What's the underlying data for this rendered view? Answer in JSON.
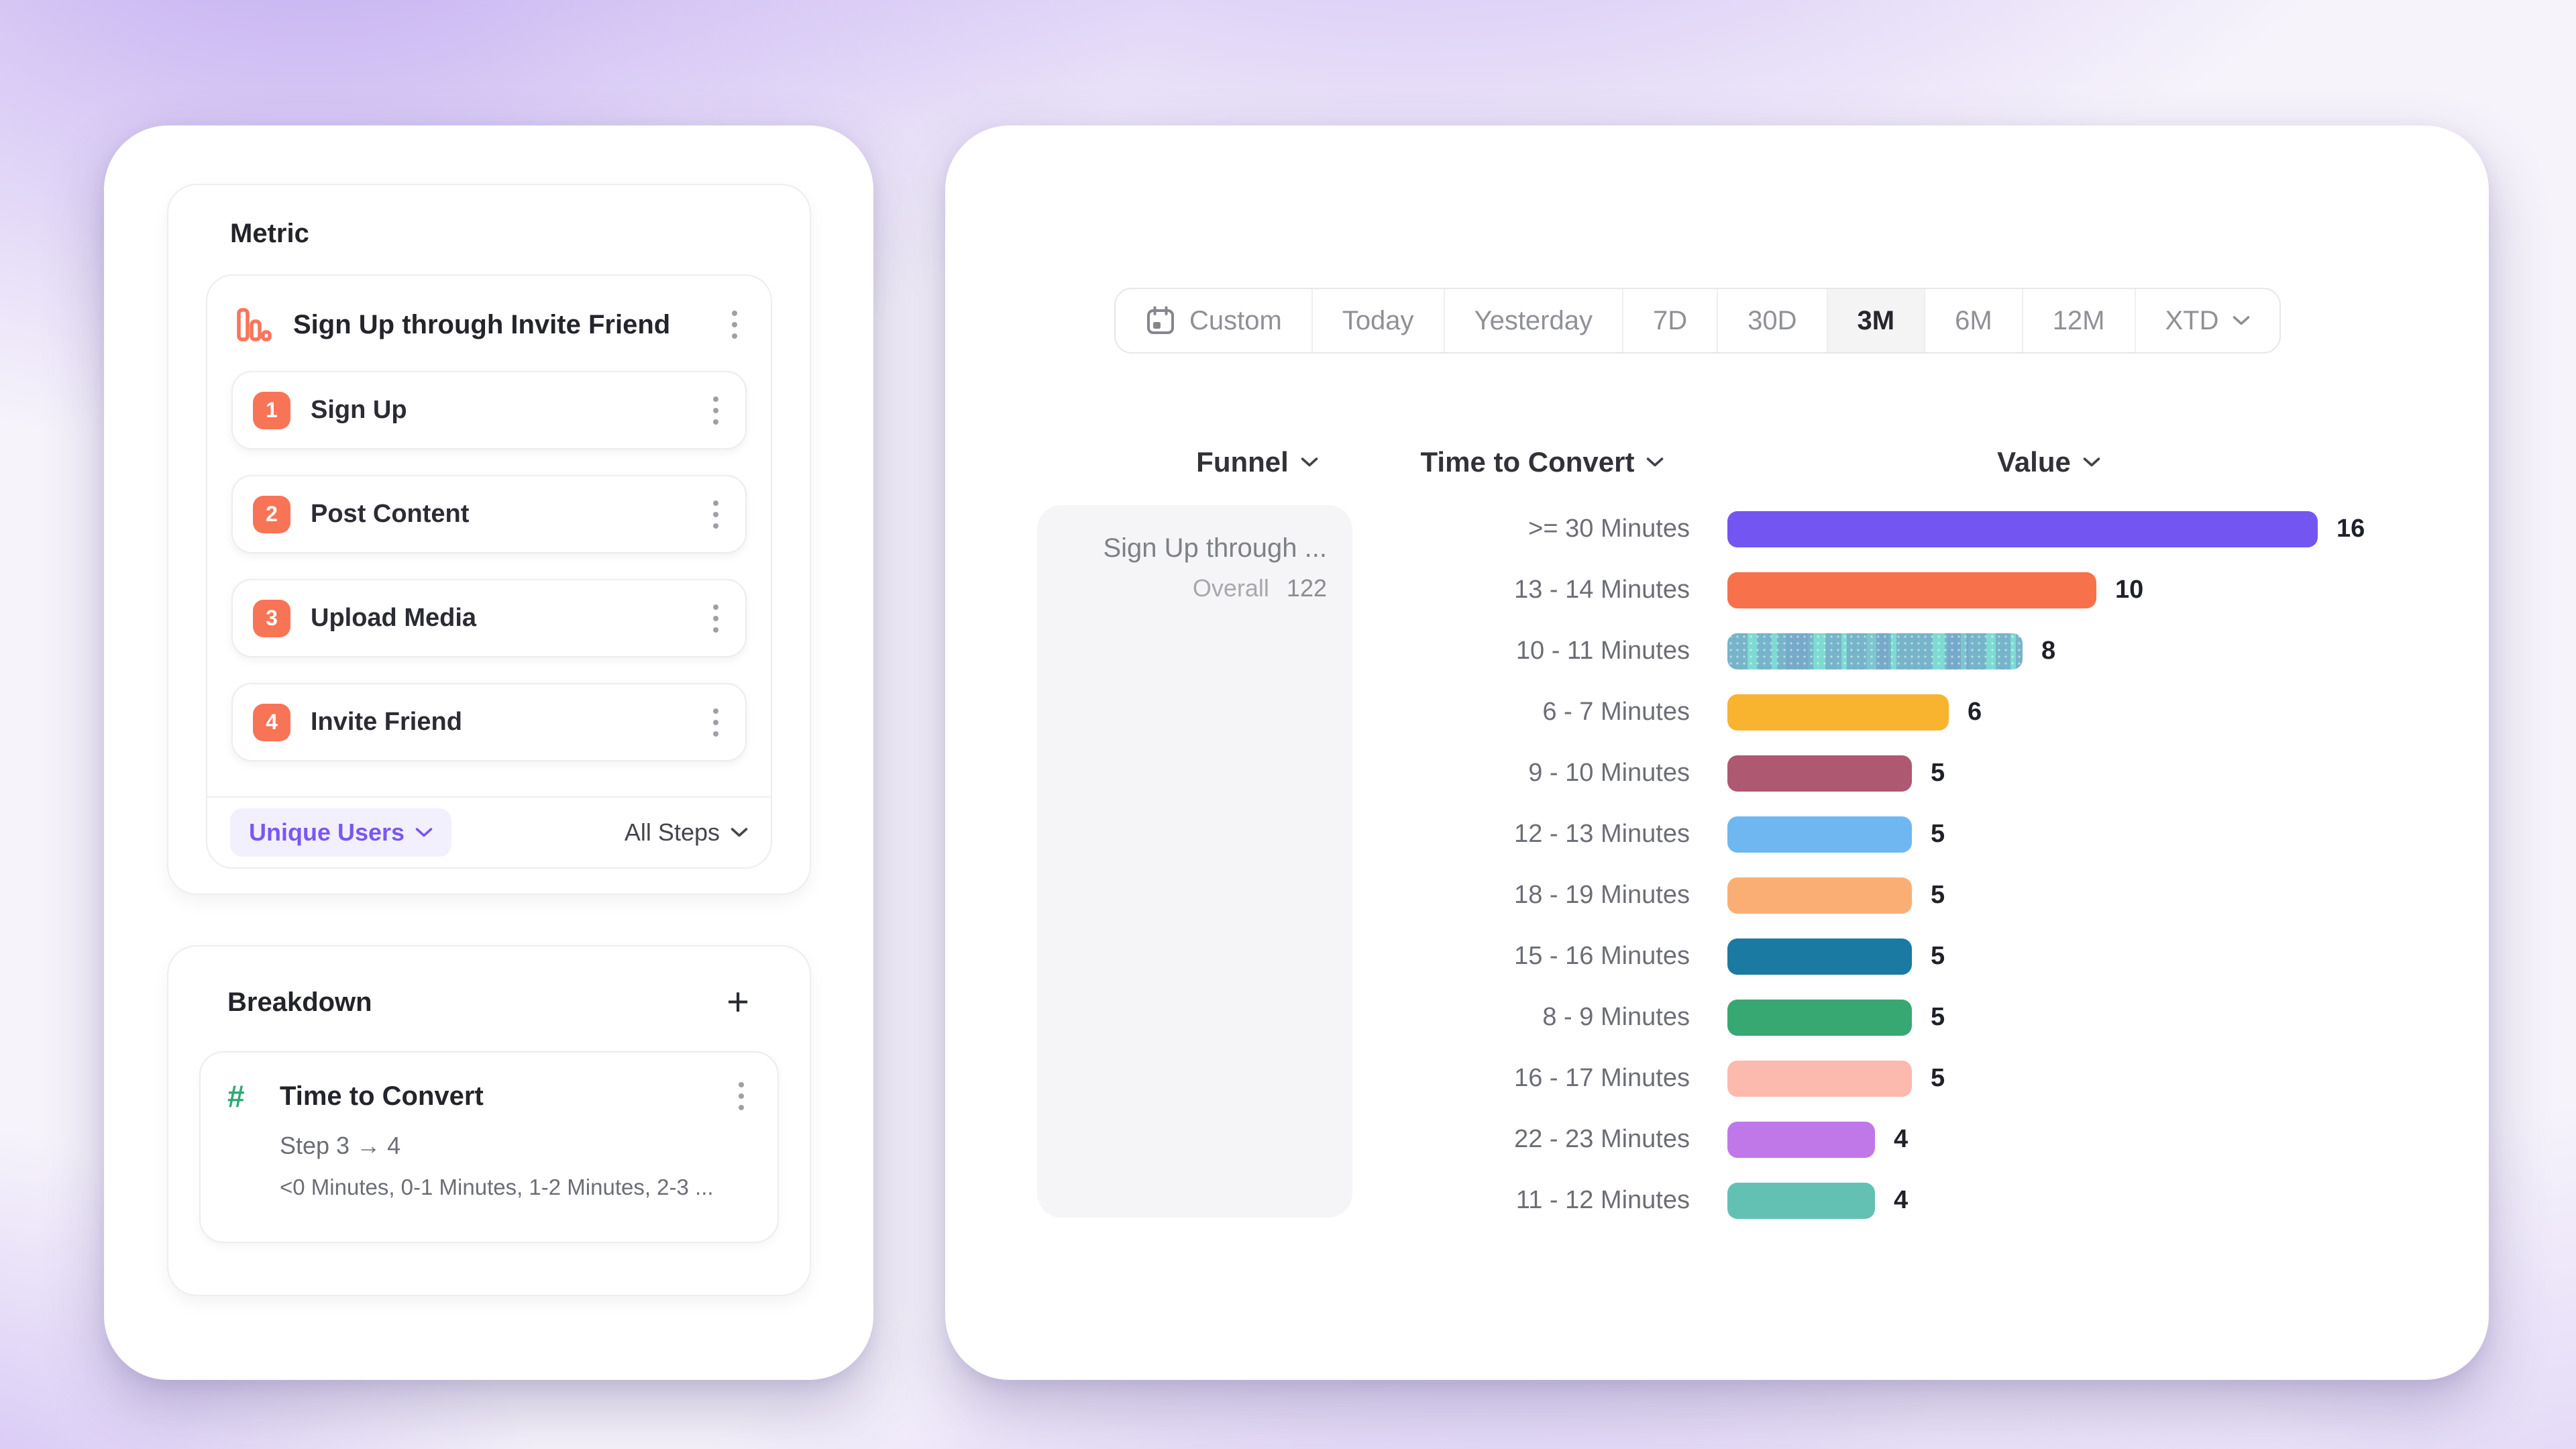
{
  "left_panel": {
    "metric_section": {
      "title": "Metric",
      "funnel": {
        "name": "Sign Up through Invite Friend",
        "icon": "bar-chart-icon",
        "steps": [
          {
            "number": "1",
            "label": "Sign Up"
          },
          {
            "number": "2",
            "label": "Post Content"
          },
          {
            "number": "3",
            "label": "Upload Media"
          },
          {
            "number": "4",
            "label": "Invite Friend"
          }
        ],
        "counting_label": "Unique Users",
        "steps_scope_label": "All Steps"
      }
    },
    "breakdown_section": {
      "title": "Breakdown",
      "add_button": "+",
      "property": {
        "icon": "hash-icon",
        "name": "Time to Convert",
        "step_range": "Step 3 → 4",
        "values_preview": "<0 Minutes, 0-1 Minutes, 1-2 Minutes, 2-3 ..."
      }
    }
  },
  "right_panel": {
    "date_range_picker": {
      "options": [
        "Custom",
        "Today",
        "Yesterday",
        "7D",
        "30D",
        "3M",
        "6M",
        "12M",
        "XTD"
      ],
      "active": "3M",
      "custom_icon": "calendar-icon"
    },
    "columns": {
      "funnel": "Funnel",
      "time_to_convert": "Time to Convert",
      "value": "Value"
    },
    "funnel_cell": {
      "name": "Sign Up through ...",
      "overall_label": "Overall",
      "overall_value": "122"
    }
  },
  "chart_data": {
    "type": "bar",
    "orientation": "horizontal",
    "categories": [
      ">= 30 Minutes",
      "13 - 14 Minutes",
      "10 - 11 Minutes",
      "6 - 7 Minutes",
      "9 - 10 Minutes",
      "12 - 13 Minutes",
      "18 - 19 Minutes",
      "15 - 16 Minutes",
      "8 - 9 Minutes",
      "16 - 17 Minutes",
      "22 - 23 Minutes",
      "11 - 12 Minutes"
    ],
    "values": [
      16,
      10,
      8,
      6,
      5,
      5,
      5,
      5,
      5,
      5,
      4,
      4
    ],
    "colors": [
      "#7355F1",
      "#F7714B",
      "#7DDBD2",
      "#F8B42E",
      "#AE5871",
      "#6FB7F0",
      "#FBAE74",
      "#1B7AA1",
      "#38A872",
      "#FCB9AD",
      "#C078E8",
      "#63C1B3"
    ],
    "striped_index": 2,
    "xlim": [
      0,
      16
    ],
    "value_labels": true,
    "grid": false,
    "legend": false
  }
}
